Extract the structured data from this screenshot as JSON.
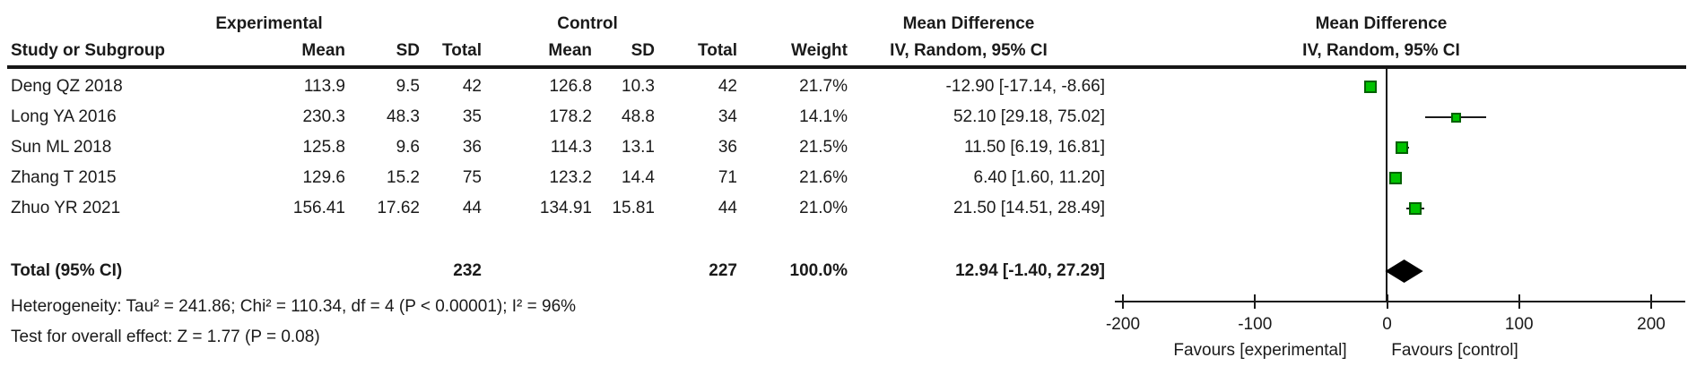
{
  "table": {
    "header": {
      "group_experimental": "Experimental",
      "group_control": "Control",
      "effect_title": "Mean Difference",
      "col_study": "Study or Subgroup",
      "col_mean": "Mean",
      "col_sd": "SD",
      "col_total": "Total",
      "col_weight": "Weight",
      "effect_subtitle": "IV, Random, 95% CI"
    },
    "studies": [
      {
        "study": "Deng QZ 2018",
        "exp_mean": "113.9",
        "exp_sd": "9.5",
        "exp_total": "42",
        "ctrl_mean": "126.8",
        "ctrl_sd": "10.3",
        "ctrl_total": "42",
        "weight": "21.7%",
        "ci_text": "-12.90 [-17.14, -8.66]"
      },
      {
        "study": "Long YA 2016",
        "exp_mean": "230.3",
        "exp_sd": "48.3",
        "exp_total": "35",
        "ctrl_mean": "178.2",
        "ctrl_sd": "48.8",
        "ctrl_total": "34",
        "weight": "14.1%",
        "ci_text": "52.10 [29.18, 75.02]"
      },
      {
        "study": "Sun ML 2018",
        "exp_mean": "125.8",
        "exp_sd": "9.6",
        "exp_total": "36",
        "ctrl_mean": "114.3",
        "ctrl_sd": "13.1",
        "ctrl_total": "36",
        "weight": "21.5%",
        "ci_text": "11.50 [6.19, 16.81]"
      },
      {
        "study": "Zhang T 2015",
        "exp_mean": "129.6",
        "exp_sd": "15.2",
        "exp_total": "75",
        "ctrl_mean": "123.2",
        "ctrl_sd": "14.4",
        "ctrl_total": "71",
        "weight": "21.6%",
        "ci_text": "6.40 [1.60, 11.20]"
      },
      {
        "study": "Zhuo YR 2021",
        "exp_mean": "156.41",
        "exp_sd": "17.62",
        "exp_total": "44",
        "ctrl_mean": "134.91",
        "ctrl_sd": "15.81",
        "ctrl_total": "44",
        "weight": "21.0%",
        "ci_text": "21.50 [14.51, 28.49]"
      }
    ],
    "total_row": {
      "label": "Total (95% CI)",
      "exp_total": "232",
      "ctrl_total": "227",
      "weight": "100.0%",
      "ci_text": "12.94 [-1.40, 27.29]"
    },
    "footnotes": {
      "heterogeneity": "Heterogeneity: Tau² = 241.86; Chi² = 110.34, df = 4 (P < 0.00001); I² = 96%",
      "overall_effect": "Test for overall effect: Z = 1.77 (P = 0.08)"
    }
  },
  "plot": {
    "effect_title": "Mean Difference",
    "effect_subtitle": "IV, Random, 95% CI",
    "favours_left": "Favours [experimental]",
    "favours_right": "Favours [control]",
    "tick_labels": [
      "-200",
      "-100",
      "0",
      "100",
      "200"
    ],
    "colors": {
      "square_fill": "#00c300",
      "square_border": "#006100",
      "diamond": "#000000",
      "line": "#1a1a1a"
    }
  },
  "chart_data": {
    "type": "forest",
    "title": "Mean Difference",
    "method": "IV, Random, 95% CI",
    "xlim": [
      -200,
      200
    ],
    "ticks": [
      -200,
      -100,
      0,
      100,
      200
    ],
    "xlabel_left": "Favours [experimental]",
    "xlabel_right": "Favours [control]",
    "studies": [
      {
        "name": "Deng QZ 2018",
        "exp_mean": 113.9,
        "exp_sd": 9.5,
        "exp_total": 42,
        "ctrl_mean": 126.8,
        "ctrl_sd": 10.3,
        "ctrl_total": 42,
        "weight_pct": 21.7,
        "md": -12.9,
        "ci_low": -17.14,
        "ci_high": -8.66
      },
      {
        "name": "Long YA 2016",
        "exp_mean": 230.3,
        "exp_sd": 48.3,
        "exp_total": 35,
        "ctrl_mean": 178.2,
        "ctrl_sd": 48.8,
        "ctrl_total": 34,
        "weight_pct": 14.1,
        "md": 52.1,
        "ci_low": 29.18,
        "ci_high": 75.02
      },
      {
        "name": "Sun ML 2018",
        "exp_mean": 125.8,
        "exp_sd": 9.6,
        "exp_total": 36,
        "ctrl_mean": 114.3,
        "ctrl_sd": 13.1,
        "ctrl_total": 36,
        "weight_pct": 21.5,
        "md": 11.5,
        "ci_low": 6.19,
        "ci_high": 16.81
      },
      {
        "name": "Zhang T 2015",
        "exp_mean": 129.6,
        "exp_sd": 15.2,
        "exp_total": 75,
        "ctrl_mean": 123.2,
        "ctrl_sd": 14.4,
        "ctrl_total": 71,
        "weight_pct": 21.6,
        "md": 6.4,
        "ci_low": 1.6,
        "ci_high": 11.2
      },
      {
        "name": "Zhuo YR 2021",
        "exp_mean": 156.41,
        "exp_sd": 17.62,
        "exp_total": 44,
        "ctrl_mean": 134.91,
        "ctrl_sd": 15.81,
        "ctrl_total": 44,
        "weight_pct": 21.0,
        "md": 21.5,
        "ci_low": 14.51,
        "ci_high": 28.49
      }
    ],
    "total": {
      "label": "Total (95% CI)",
      "exp_total": 232,
      "ctrl_total": 227,
      "weight_pct": 100.0,
      "md": 12.94,
      "ci_low": -1.4,
      "ci_high": 27.29
    }
  }
}
